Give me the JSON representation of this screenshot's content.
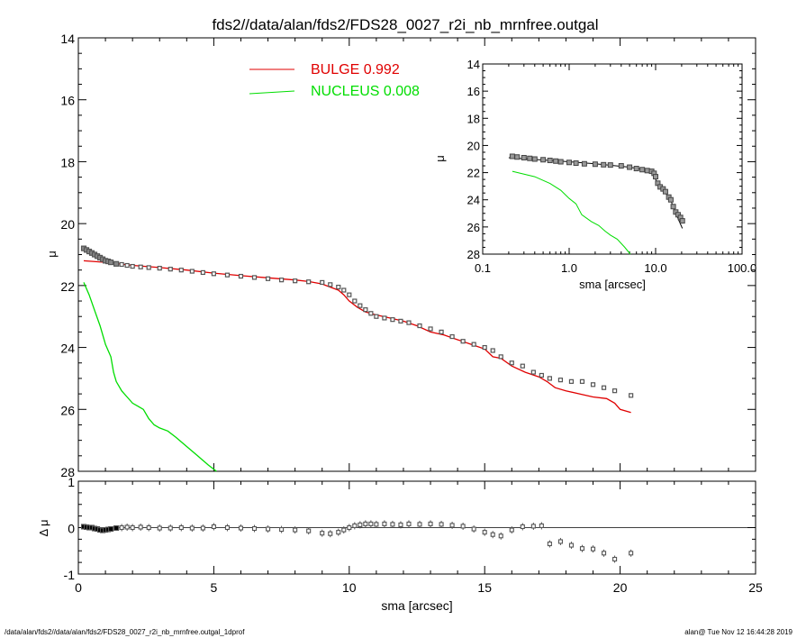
{
  "title": "fds2//data/alan/fds2/FDS28_0027_r2i_nb_mrnfree.outgal",
  "footer_left": "/data/alan/fds2//data/alan/fds2/FDS28_0027_r2i_nb_mrnfree.outgal_1dprof",
  "footer_right": "alan@  Tue Nov 12 16:44:28 2019",
  "colors": {
    "bulge": "#e00000",
    "nucleus": "#00dd00",
    "data": "#000000",
    "axes": "#000000"
  },
  "chart_data": [
    {
      "id": "main-profile",
      "type": "line",
      "xlabel": "",
      "ylabel": "μ",
      "xlim": [
        0,
        25
      ],
      "ylim": [
        28,
        14
      ],
      "y_inverted": true,
      "yticks": [
        "14",
        "16",
        "18",
        "20",
        "22",
        "24",
        "26",
        "28"
      ],
      "legend": [
        {
          "name": "BULGE",
          "value": "0.992",
          "color": "#e00000"
        },
        {
          "name": "NUCLEUS",
          "value": "0.008",
          "color": "#00dd00"
        }
      ],
      "legend_position": "top-center",
      "data_points": {
        "x": [
          0.2,
          0.3,
          0.4,
          0.5,
          0.6,
          0.7,
          0.8,
          0.9,
          1.0,
          1.1,
          1.2,
          1.4,
          1.6,
          1.8,
          2.0,
          2.3,
          2.6,
          3.0,
          3.4,
          3.8,
          4.2,
          4.6,
          5.0,
          5.5,
          6.0,
          6.5,
          7.0,
          7.5,
          8.0,
          8.5,
          9.0,
          9.3,
          9.6,
          9.8,
          10.0,
          10.2,
          10.4,
          10.6,
          10.8,
          11.0,
          11.3,
          11.6,
          11.9,
          12.2,
          12.6,
          13.0,
          13.4,
          13.8,
          14.2,
          14.6,
          15.0,
          15.3,
          15.6,
          16.0,
          16.4,
          16.8,
          17.1,
          17.4,
          17.8,
          18.2,
          18.6,
          19.0,
          19.4,
          19.8,
          20.4
        ],
        "y": [
          20.8,
          20.85,
          20.9,
          20.95,
          21.0,
          21.05,
          21.1,
          21.15,
          21.2,
          21.22,
          21.25,
          21.3,
          21.32,
          21.35,
          21.38,
          21.4,
          21.42,
          21.44,
          21.47,
          21.5,
          21.54,
          21.58,
          21.62,
          21.66,
          21.7,
          21.74,
          21.78,
          21.82,
          21.85,
          21.88,
          21.9,
          21.97,
          22.05,
          22.15,
          22.3,
          22.5,
          22.65,
          22.78,
          22.9,
          23.0,
          23.05,
          23.1,
          23.15,
          23.2,
          23.3,
          23.4,
          23.5,
          23.65,
          23.8,
          23.9,
          24.0,
          24.1,
          24.3,
          24.5,
          24.6,
          24.8,
          24.9,
          25.0,
          25.05,
          25.1,
          25.1,
          25.2,
          25.3,
          25.4,
          25.55
        ]
      },
      "series": [
        {
          "name": "BULGE",
          "color": "#e00000",
          "x": [
            0.2,
            1.0,
            2.0,
            3.0,
            4.0,
            5.0,
            6.0,
            7.0,
            8.0,
            8.5,
            9.0,
            9.3,
            9.6,
            9.8,
            10.0,
            10.3,
            10.6,
            11.0,
            11.5,
            12.0,
            12.5,
            13.0,
            13.5,
            14.0,
            14.5,
            15.0,
            15.3,
            15.6,
            16.0,
            16.5,
            17.0,
            17.3,
            17.6,
            18.0,
            18.5,
            19.0,
            19.5,
            19.8,
            20.0,
            20.4
          ],
          "y": [
            21.2,
            21.25,
            21.35,
            21.42,
            21.5,
            21.6,
            21.68,
            21.75,
            21.82,
            21.87,
            21.95,
            22.05,
            22.15,
            22.3,
            22.5,
            22.7,
            22.85,
            22.95,
            23.05,
            23.15,
            23.3,
            23.5,
            23.6,
            23.75,
            23.9,
            24.05,
            24.3,
            24.35,
            24.6,
            24.8,
            24.95,
            25.1,
            25.3,
            25.4,
            25.5,
            25.6,
            25.65,
            25.8,
            26.0,
            26.1
          ]
        },
        {
          "name": "NUCLEUS",
          "color": "#00dd00",
          "x": [
            0.2,
            0.4,
            0.6,
            0.8,
            1.0,
            1.2,
            1.3,
            1.4,
            1.6,
            1.8,
            2.0,
            2.2,
            2.4,
            2.6,
            2.8,
            3.0,
            3.3,
            3.6,
            4.0,
            4.4,
            4.8,
            5.1
          ],
          "y": [
            21.9,
            22.3,
            22.8,
            23.3,
            23.9,
            24.3,
            24.8,
            25.1,
            25.4,
            25.6,
            25.8,
            25.9,
            26.0,
            26.3,
            26.5,
            26.6,
            26.7,
            26.9,
            27.2,
            27.5,
            27.8,
            28.0
          ]
        }
      ]
    },
    {
      "id": "inset-log-profile",
      "type": "line",
      "xlabel": "sma [arcsec]",
      "ylabel": "μ",
      "x_scale": "log",
      "xlim": [
        0.1,
        100.0
      ],
      "ylim": [
        28,
        14
      ],
      "y_inverted": true,
      "xticks": [
        "0.1",
        "1.0",
        "10.0",
        "100.0"
      ],
      "yticks": [
        "14",
        "16",
        "18",
        "20",
        "22",
        "24",
        "26",
        "28"
      ],
      "data_points": {
        "x": [
          0.22,
          0.25,
          0.3,
          0.35,
          0.4,
          0.5,
          0.6,
          0.7,
          0.8,
          1.0,
          1.2,
          1.5,
          2.0,
          2.5,
          3.0,
          4.0,
          5.0,
          6.0,
          7.0,
          8.0,
          9.0,
          9.6,
          10.0,
          10.6,
          11.3,
          12.2,
          13.0,
          14.2,
          15.0,
          16.0,
          17.1,
          18.2,
          19.4,
          20.4
        ],
        "y": [
          20.8,
          20.85,
          20.9,
          20.95,
          21.0,
          21.05,
          21.1,
          21.15,
          21.2,
          21.25,
          21.3,
          21.35,
          21.38,
          21.42,
          21.44,
          21.5,
          21.6,
          21.7,
          21.78,
          21.85,
          21.9,
          22.05,
          22.3,
          22.78,
          23.05,
          23.2,
          23.4,
          23.8,
          24.0,
          24.5,
          24.9,
          25.1,
          25.3,
          25.55
        ]
      },
      "series": [
        {
          "name": "",
          "color": "#000000",
          "x": [
            0.2,
            1.0,
            2.0,
            5.0,
            8.0,
            9.6,
            10.0,
            11.0,
            12.0,
            13.0,
            15.0,
            17.0,
            20.4
          ],
          "y": [
            20.9,
            21.2,
            21.35,
            21.6,
            21.82,
            22.15,
            22.5,
            22.95,
            23.15,
            23.5,
            24.05,
            24.95,
            26.1
          ]
        },
        {
          "name": "",
          "color": "#00dd00",
          "x": [
            0.22,
            0.4,
            0.6,
            0.8,
            1.0,
            1.2,
            1.4,
            1.8,
            2.2,
            2.6,
            3.0,
            3.6,
            4.4,
            5.1
          ],
          "y": [
            21.9,
            22.3,
            22.8,
            23.3,
            23.9,
            24.3,
            25.1,
            25.6,
            25.9,
            26.3,
            26.6,
            26.9,
            27.5,
            28.0
          ]
        }
      ]
    },
    {
      "id": "residuals",
      "type": "scatter",
      "xlabel": "sma [arcsec]",
      "ylabel": "Δ μ",
      "xlim": [
        0,
        25
      ],
      "ylim": [
        -1,
        1
      ],
      "xticks": [
        "0",
        "5",
        "10",
        "15",
        "20",
        "25"
      ],
      "yticks": [
        "1",
        "0",
        "-1"
      ],
      "zero_line": true,
      "series": [
        {
          "name": "",
          "color": "#000000",
          "x": [
            0.2,
            0.3,
            0.4,
            0.5,
            0.6,
            0.7,
            0.8,
            0.9,
            1.0,
            1.1,
            1.2,
            1.4,
            1.6,
            1.8,
            2.0,
            2.3,
            2.6,
            3.0,
            3.4,
            3.8,
            4.2,
            4.6,
            5.0,
            5.5,
            6.0,
            6.5,
            7.0,
            7.5,
            8.0,
            8.5,
            9.0,
            9.3,
            9.6,
            9.8,
            10.0,
            10.2,
            10.4,
            10.6,
            10.8,
            11.0,
            11.3,
            11.6,
            11.9,
            12.2,
            12.6,
            13.0,
            13.4,
            13.8,
            14.2,
            14.6,
            15.0,
            15.3,
            15.6,
            16.0,
            16.4,
            16.8,
            17.1,
            17.4,
            17.8,
            18.2,
            18.6,
            19.0,
            19.4,
            19.8,
            20.4
          ],
          "y": [
            0.02,
            0.01,
            0.0,
            0.0,
            -0.02,
            -0.03,
            -0.05,
            -0.06,
            -0.05,
            -0.04,
            -0.03,
            -0.01,
            0.0,
            0.01,
            0.0,
            0.01,
            0.0,
            -0.01,
            -0.01,
            0.0,
            -0.01,
            -0.01,
            0.02,
            0.0,
            -0.01,
            -0.02,
            -0.03,
            -0.04,
            -0.05,
            -0.07,
            -0.12,
            -0.13,
            -0.1,
            -0.05,
            0.0,
            0.04,
            0.06,
            0.08,
            0.08,
            0.07,
            0.08,
            0.07,
            0.06,
            0.08,
            0.07,
            0.08,
            0.07,
            0.05,
            0.03,
            -0.03,
            -0.1,
            -0.15,
            -0.18,
            -0.05,
            0.02,
            0.03,
            0.04,
            -0.35,
            -0.3,
            -0.38,
            -0.45,
            -0.46,
            -0.55,
            -0.68,
            -0.55
          ]
        }
      ]
    }
  ]
}
